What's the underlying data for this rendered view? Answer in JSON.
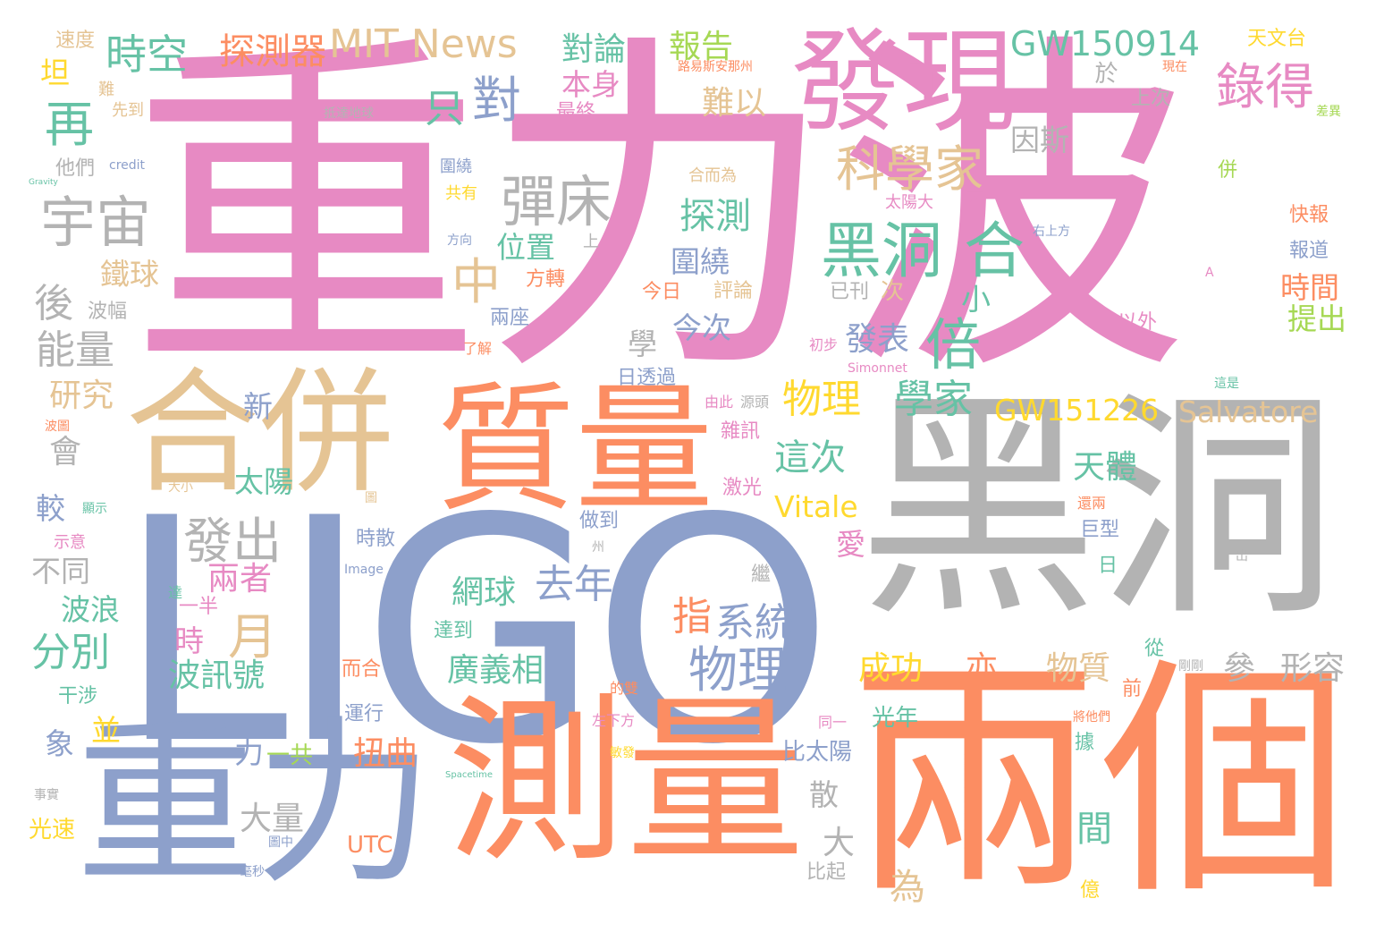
{
  "palette": {
    "pink": "#e78ac3",
    "orange": "#fc8d62",
    "blue": "#8da0cb",
    "gray": "#b3b3b3",
    "tan": "#e5c494",
    "green": "#66c2a5",
    "lime": "#a6d854",
    "yellow": "#ffd92f"
  },
  "words": {
    "w001": "重力波",
    "w002": "LIGO",
    "w003": "黑洞",
    "w004": "兩個",
    "w005": "測量",
    "w006": "重力",
    "w007": "發現",
    "w008": "質量",
    "w009": "合併",
    "w010": "MIT News",
    "w011": "GW150914",
    "w012": "GW151226",
    "w013": "Salvatore",
    "w014": "Vitale",
    "w015": "探測器",
    "w016": "時空",
    "w017": "對論",
    "w018": "報告",
    "w019": "錄得",
    "w020": "科學家",
    "w021": "彈床",
    "w022": "宇宙",
    "w023": "黑洞",
    "w024": "合",
    "w025": "倍",
    "w026": "物理",
    "w027": "學家",
    "w028": "這次",
    "w029": "天體",
    "w030": "發出",
    "w031": "去年",
    "w032": "系統",
    "w033": "物理",
    "w034": "廣義相",
    "w035": "網球",
    "w036": "成功",
    "w037": "物質",
    "w038": "形容",
    "w039": "分別",
    "w040": "波訊號",
    "w041": "扭曲",
    "w042": "大量",
    "w043": "能量",
    "w044": "研究",
    "w045": "鐵球",
    "w046": "位置",
    "w047": "圍繞",
    "w048": "探測",
    "w049": "今次",
    "w050": "發表",
    "w051": "兩者",
    "w052": "太陽",
    "w053": "比太陽",
    "w054": "時間",
    "w055": "提出",
    "w056": "不同",
    "w057": "波浪",
    "w058": "再",
    "w059": "對",
    "w060": "只",
    "w061": "中",
    "w062": "後",
    "w063": "月",
    "w064": "指",
    "w065": "亦",
    "w066": "參",
    "w067": "一共",
    "w068": "為",
    "w069": "大",
    "w070": "速度",
    "w071": "坦",
    "w072": "天文台",
    "w073": "本身",
    "w074": "最終",
    "w075": "難以",
    "w076": "因斯",
    "w077": "上次",
    "w078": "於",
    "w079": "會",
    "w080": "較",
    "w081": "象",
    "w082": "並",
    "w083": "光速",
    "w084": "UTC",
    "w085": "比起",
    "w086": "散",
    "w087": "時散",
    "w088": "方轉",
    "w089": "評論",
    "w090": "今日",
    "w091": "已刊",
    "w092": "次",
    "w093": "小",
    "w094": "學",
    "w095": "新",
    "w096": "一半",
    "w097": "時",
    "w098": "力",
    "w099": "做到",
    "w100": "激光",
    "w101": "雜訊",
    "w102": "愛",
    "w103": "巨型",
    "w104": "日",
    "w105": "據",
    "w106": "前",
    "w107": "從",
    "w108": "間",
    "w109": "億",
    "w110": "光年",
    "w111": "運行",
    "w112": "達到",
    "w113": "干涉",
    "w114": "而合",
    "w115": "示意",
    "w116": "波幅",
    "w117": "兩座",
    "w118": "了解",
    "w119": "以外",
    "w120": "初步",
    "w121": "快報",
    "w122": "報道",
    "w123": "太陽大",
    "w124": "不",
    "w125": "合而為",
    "w126": "共有",
    "w127": "圍繞",
    "w128": "方向",
    "w129": "上",
    "w130": "他們",
    "w131": "credit",
    "w132": "先到",
    "w133": "抵達地球",
    "w134": "路易斯安那州",
    "w135": "現在",
    "w136": "差異",
    "w137": "右上方",
    "w138": "併",
    "w139": "日透過",
    "w140": "由此",
    "w141": "源頭",
    "w142": "Simonnet",
    "w143": "Image",
    "w144": "繼",
    "w145": "左下方",
    "w146": "同一",
    "w147": "將他們",
    "w148": "還兩",
    "w149": "剛剛",
    "w150": "事實",
    "w151": "圖中",
    "w152": "毫秒",
    "w153": "顯示",
    "w154": "大小",
    "w155": "出",
    "w156": "這是",
    "w157": "波圖",
    "w158": "的雙",
    "w159": "敏發",
    "w160": "州",
    "w161": "Spacetime",
    "w162": "Gravity",
    "w163": "A",
    "w164": "難",
    "w165": "圖",
    "w166": "達"
  }
}
